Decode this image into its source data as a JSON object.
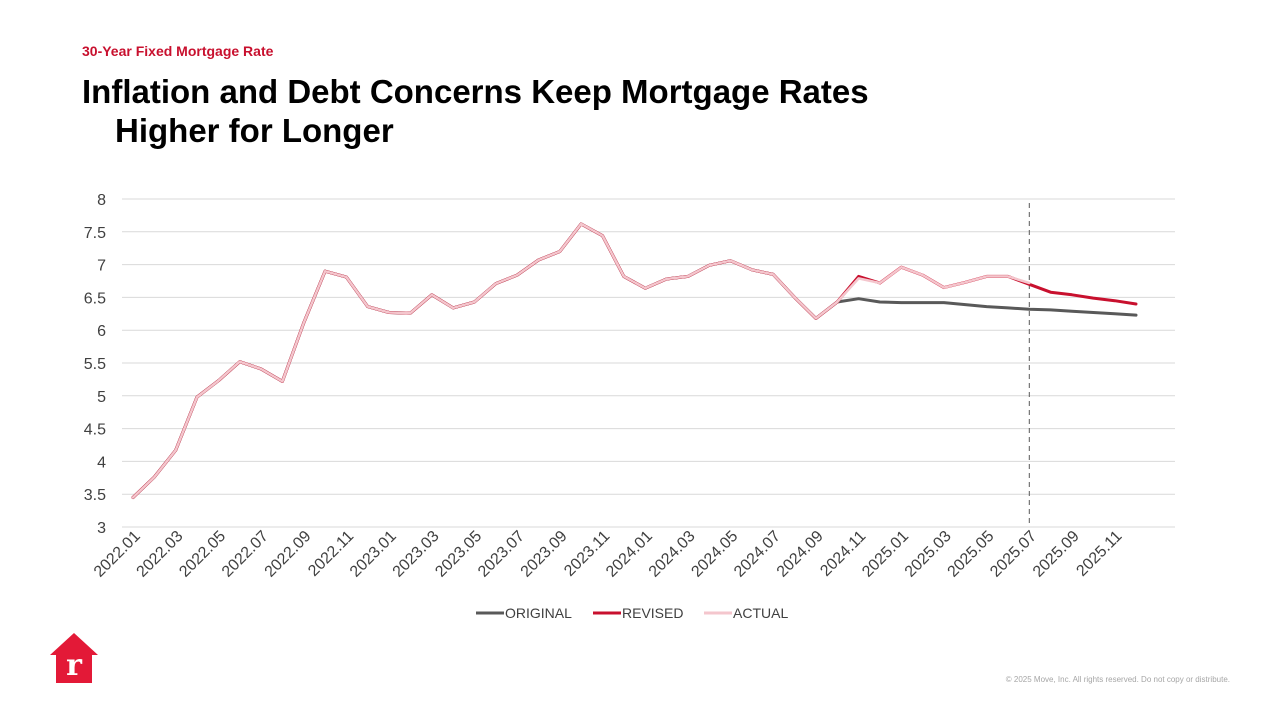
{
  "header": {
    "eyebrow": "30-Year Fixed Mortgage Rate",
    "title_line1": "Inflation and Debt Concerns Keep Mortgage Rates",
    "title_line2": "Higher for Longer"
  },
  "footer": {
    "copyright": "© 2025 Move, Inc. All rights reserved. Do not copy or distribute."
  },
  "colors": {
    "accent": "#c8102e",
    "original": "#595959",
    "revised": "#c8102e",
    "actual": "#f4c6cd",
    "grid": "#d9d9d9"
  },
  "chart_data": {
    "type": "line",
    "title": "",
    "xlabel": "",
    "ylabel": "",
    "ylim": [
      3,
      8
    ],
    "yticks": [
      "3",
      "3.5",
      "4",
      "4.5",
      "5",
      "5.5",
      "6",
      "6.5",
      "7",
      "7.5",
      "8"
    ],
    "x": [
      "2022.01",
      "2022.02",
      "2022.03",
      "2022.04",
      "2022.05",
      "2022.06",
      "2022.07",
      "2022.08",
      "2022.09",
      "2022.10",
      "2022.11",
      "2022.12",
      "2023.01",
      "2023.02",
      "2023.03",
      "2023.04",
      "2023.05",
      "2023.06",
      "2023.07",
      "2023.08",
      "2023.09",
      "2023.10",
      "2023.11",
      "2023.12",
      "2024.01",
      "2024.02",
      "2024.03",
      "2024.04",
      "2024.05",
      "2024.06",
      "2024.07",
      "2024.08",
      "2024.09",
      "2024.10",
      "2024.11",
      "2024.12",
      "2025.01",
      "2025.02",
      "2025.03",
      "2025.04",
      "2025.05",
      "2025.06",
      "2025.07",
      "2025.08",
      "2025.09",
      "2025.10",
      "2025.11",
      "2025.12"
    ],
    "xtick_labels": [
      "2022.01",
      "2022.03",
      "2022.05",
      "2022.07",
      "2022.09",
      "2022.11",
      "2023.01",
      "2023.03",
      "2023.05",
      "2023.07",
      "2023.09",
      "2023.11",
      "2024.01",
      "2024.03",
      "2024.05",
      "2024.07",
      "2024.09",
      "2024.11",
      "2025.01",
      "2025.03",
      "2025.05",
      "2025.07",
      "2025.09",
      "2025.11"
    ],
    "legend": {
      "placement": "bottom-center"
    },
    "grid": true,
    "reference_line": {
      "x": "2025.07",
      "style": "dashed"
    },
    "series": [
      {
        "name": "ORIGINAL",
        "values": [
          3.45,
          3.76,
          4.17,
          4.98,
          5.23,
          5.52,
          5.41,
          5.22,
          6.11,
          6.9,
          6.81,
          6.36,
          6.27,
          6.26,
          6.54,
          6.34,
          6.43,
          6.71,
          6.84,
          7.07,
          7.2,
          7.62,
          7.44,
          6.82,
          6.64,
          6.78,
          6.82,
          6.99,
          7.06,
          6.92,
          6.85,
          6.5,
          6.18,
          6.43,
          6.48,
          6.43,
          6.42,
          6.42,
          6.42,
          6.39,
          6.36,
          6.34,
          6.32,
          6.31,
          6.29,
          6.27,
          6.25,
          6.23
        ]
      },
      {
        "name": "REVISED",
        "values": [
          3.45,
          3.76,
          4.17,
          4.98,
          5.23,
          5.52,
          5.41,
          5.22,
          6.11,
          6.9,
          6.81,
          6.36,
          6.27,
          6.26,
          6.54,
          6.34,
          6.43,
          6.71,
          6.84,
          7.07,
          7.2,
          7.62,
          7.44,
          6.82,
          6.64,
          6.78,
          6.82,
          6.99,
          7.06,
          6.92,
          6.85,
          6.5,
          6.18,
          6.43,
          6.82,
          6.72,
          6.96,
          6.84,
          6.65,
          6.73,
          6.82,
          6.82,
          6.7,
          6.58,
          6.54,
          6.49,
          6.45,
          6.4
        ]
      },
      {
        "name": "ACTUAL",
        "values": [
          3.45,
          3.76,
          4.17,
          4.98,
          5.23,
          5.52,
          5.41,
          5.22,
          6.11,
          6.9,
          6.81,
          6.36,
          6.27,
          6.26,
          6.54,
          6.34,
          6.43,
          6.71,
          6.84,
          7.07,
          7.2,
          7.62,
          7.44,
          6.82,
          6.64,
          6.78,
          6.82,
          6.99,
          7.06,
          6.92,
          6.85,
          6.5,
          6.18,
          6.43,
          6.79,
          6.72,
          6.96,
          6.84,
          6.65,
          6.73,
          6.82,
          6.82,
          6.72,
          null,
          null,
          null,
          null,
          null
        ]
      }
    ]
  }
}
